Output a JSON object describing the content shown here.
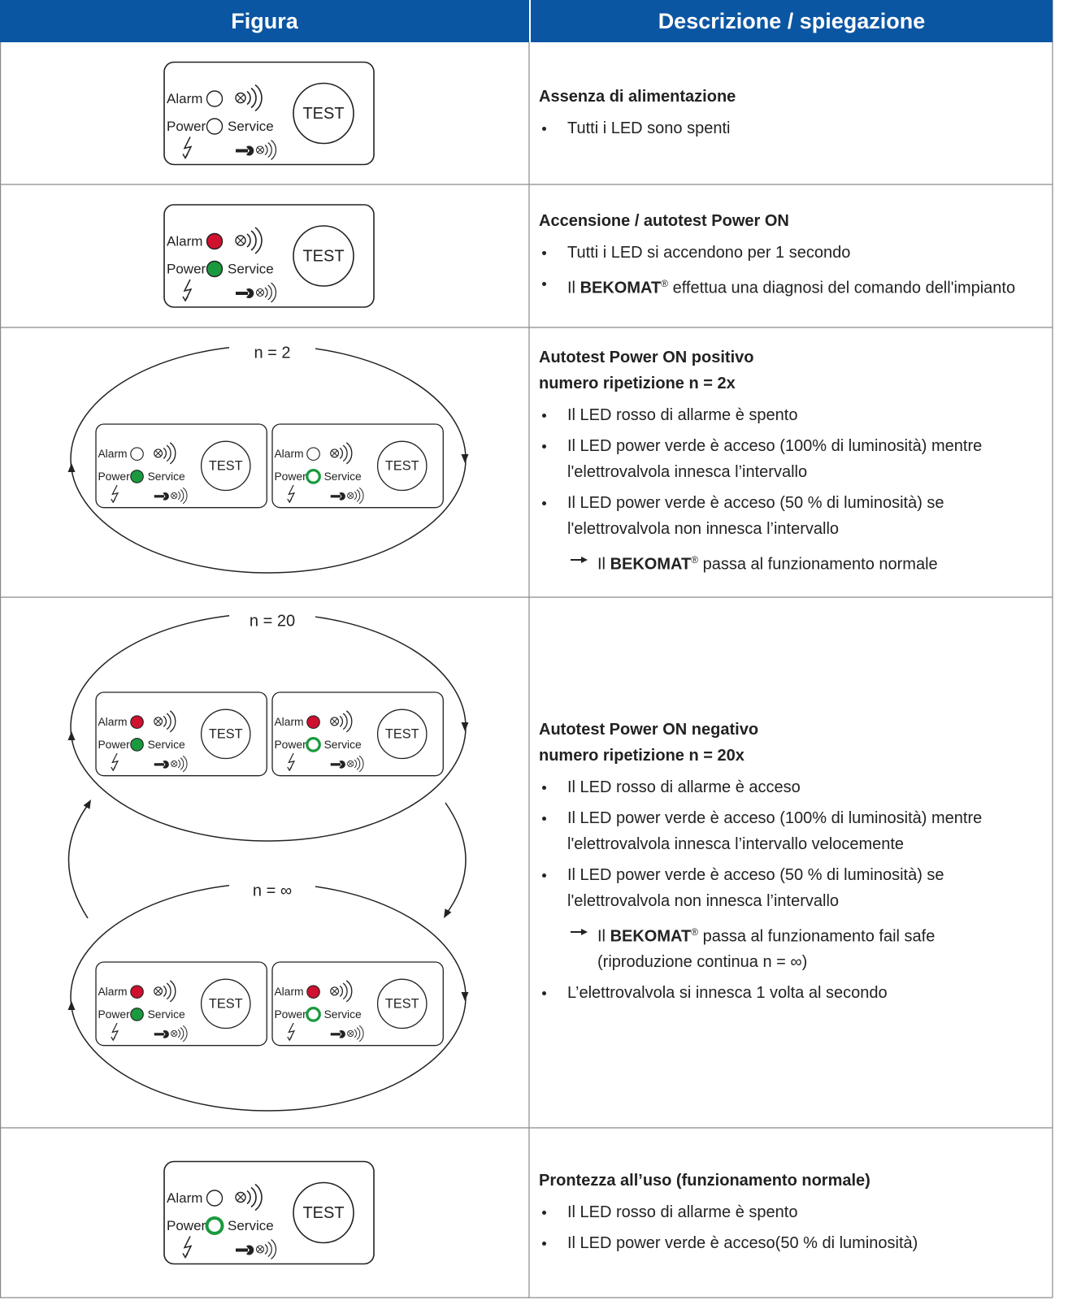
{
  "table": {
    "header": [
      "Figura",
      "Descrizione / spiegazione"
    ],
    "panel_labels": {
      "alarm": "Alarm",
      "power": "Power",
      "service": "Service",
      "test": "TEST"
    },
    "rows": [
      {
        "figure": {
          "panels": [
            {
              "alarm_led": {
                "fill": "#ffffff",
                "stroke": "#222222"
              },
              "power_led": {
                "fill": "#ffffff",
                "stroke": "#222222"
              }
            }
          ]
        },
        "title": [
          "Assenza di alimentazione"
        ],
        "items": [
          {
            "parts": [
              "Tutti i LED sono spenti"
            ]
          }
        ]
      },
      {
        "figure": {
          "panels": [
            {
              "alarm_led": {
                "fill": "#d0102f",
                "stroke": "#222222"
              },
              "power_led": {
                "fill": "#1a9a3e",
                "stroke": "#222222"
              }
            }
          ]
        },
        "title": [
          "Accensione / autotest Power ON"
        ],
        "items": [
          {
            "parts": [
              "Tutti i LED si accendono per 1 secondo"
            ]
          },
          {
            "parts": [
              "Il ",
              {
                "bold": "BEKOMAT"
              },
              {
                "sup": "®"
              },
              " effettua una diagnosi del comando dell'impianto"
            ]
          }
        ]
      },
      {
        "figure": {
          "loops": [
            {
              "label": "n = 2",
              "panels": [
                {
                  "alarm_led": {
                    "fill": "#ffffff",
                    "stroke": "#222222"
                  },
                  "power_led": {
                    "fill": "#1a9a3e",
                    "stroke": "#222222"
                  }
                },
                {
                  "alarm_led": {
                    "fill": "#ffffff",
                    "stroke": "#222222"
                  },
                  "power_led": {
                    "fill": "#ffffff",
                    "stroke": "#1a9a3e"
                  }
                }
              ]
            }
          ]
        },
        "title": [
          "Autotest Power ON positivo",
          "numero ripetizione n = 2x"
        ],
        "items": [
          {
            "parts": [
              "Il LED rosso di allarme è spento"
            ]
          },
          {
            "parts": [
              "Il LED power verde è acceso (100% di luminosità) mentre l'elettrovalvola innesca l’intervallo"
            ]
          },
          {
            "parts": [
              "Il LED power verde è acceso (50 % di luminosità) se l'elettrovalvola non innesca l’intervallo"
            ]
          },
          {
            "level": 2,
            "parts": [
              "Il ",
              {
                "bold": "BEKOMAT"
              },
              {
                "sup": "®"
              },
              " passa al funzionamento normale"
            ]
          }
        ]
      },
      {
        "figure": {
          "loops": [
            {
              "label": "n = 20",
              "panels": [
                {
                  "alarm_led": {
                    "fill": "#d0102f",
                    "stroke": "#222222"
                  },
                  "power_led": {
                    "fill": "#1a9a3e",
                    "stroke": "#222222"
                  }
                },
                {
                  "alarm_led": {
                    "fill": "#d0102f",
                    "stroke": "#222222"
                  },
                  "power_led": {
                    "fill": "#ffffff",
                    "stroke": "#1a9a3e"
                  }
                }
              ]
            },
            {
              "label": "n = ∞",
              "panels": [
                {
                  "alarm_led": {
                    "fill": "#d0102f",
                    "stroke": "#222222"
                  },
                  "power_led": {
                    "fill": "#1a9a3e",
                    "stroke": "#222222"
                  }
                },
                {
                  "alarm_led": {
                    "fill": "#d0102f",
                    "stroke": "#222222"
                  },
                  "power_led": {
                    "fill": "#ffffff",
                    "stroke": "#1a9a3e"
                  }
                }
              ]
            }
          ]
        },
        "title": [
          "Autotest Power ON negativo",
          "numero ripetizione n = 20x"
        ],
        "items": [
          {
            "parts": [
              "Il LED rosso di allarme è acceso"
            ]
          },
          {
            "parts": [
              "Il LED power verde è acceso (100% di luminosità) mentre l'elettrovalvola innesca l’intervallo velocemente"
            ]
          },
          {
            "parts": [
              "Il LED power verde è acceso (50 % di luminosità) se l'elettrovalvola non innesca l’intervallo"
            ]
          },
          {
            "level": 2,
            "parts": [
              "Il ",
              {
                "bold": "BEKOMAT"
              },
              {
                "sup": "®"
              },
              " passa al funzionamento fail safe (riproduzione continua n = ∞)"
            ]
          },
          {
            "parts": [
              "L’elettrovalvola si innesca 1 volta al secondo"
            ]
          }
        ]
      },
      {
        "figure": {
          "panels": [
            {
              "alarm_led": {
                "fill": "#ffffff",
                "stroke": "#222222"
              },
              "power_led": {
                "fill": "#ffffff",
                "stroke": "#1a9a3e"
              }
            }
          ]
        },
        "title": [
          "Prontezza all’uso (funzionamento normale)"
        ],
        "items": [
          {
            "parts": [
              "Il LED rosso di allarme è spento"
            ]
          },
          {
            "parts": [
              "Il LED power verde è acceso(50 % di luminosità)"
            ]
          }
        ]
      }
    ]
  }
}
